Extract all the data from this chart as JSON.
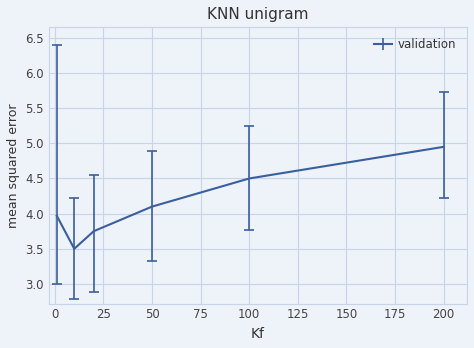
{
  "title": "KNN unigram",
  "xlabel": "Kf",
  "ylabel": "mean squared error",
  "line_color": "#3a5f9e",
  "background_color": "#eef2f9",
  "axes_background": "#eef2f9",
  "grid_color": "#c8d4e8",
  "spine_color": "#c8d4e8",
  "legend_label": "validation",
  "x": [
    1,
    10,
    20,
    50,
    100,
    200
  ],
  "y": [
    3.97,
    3.5,
    3.75,
    4.1,
    4.5,
    4.95
  ],
  "yerr_upper": [
    2.43,
    0.72,
    0.8,
    0.79,
    0.75,
    0.78
  ],
  "yerr_lower": [
    0.97,
    0.72,
    0.86,
    0.77,
    0.73,
    0.73
  ],
  "xticks": [
    0,
    25,
    50,
    75,
    100,
    125,
    150,
    175,
    200
  ],
  "xtick_labels": [
    "0",
    "25",
    "50",
    "75",
    "100",
    "125",
    "150",
    "175",
    "200"
  ],
  "yticks": [
    3.0,
    3.5,
    4.0,
    4.5,
    5.0,
    5.5,
    6.0,
    6.5
  ],
  "ylim": [
    2.72,
    6.65
  ],
  "xlim": [
    -3,
    212
  ],
  "figsize": [
    4.74,
    3.48
  ],
  "dpi": 100
}
